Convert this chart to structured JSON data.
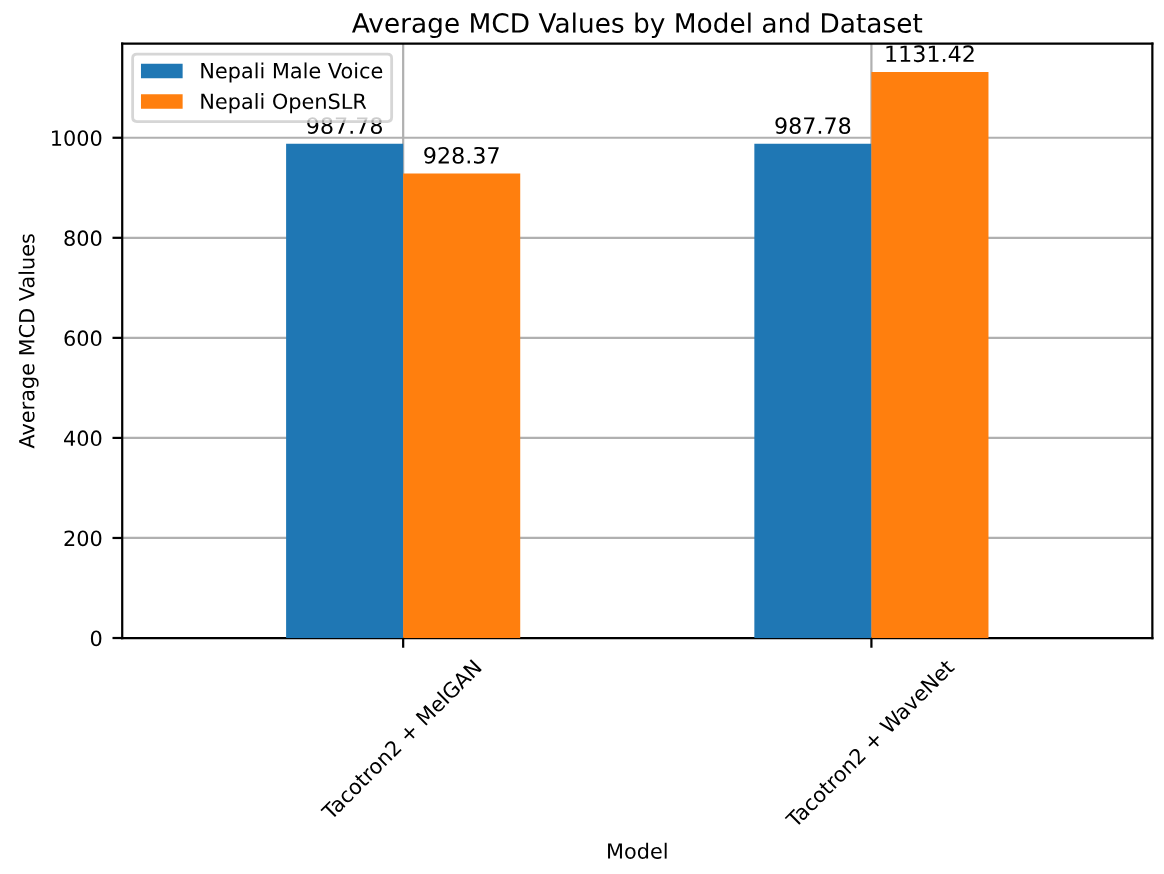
{
  "chart_data": {
    "type": "bar",
    "title": "Average MCD Values by Model and Dataset",
    "xlabel": "Model",
    "ylabel": "Average MCD Values",
    "categories": [
      "Tacotron2 + MelGAN",
      "Tacotron2 + WaveNet"
    ],
    "series": [
      {
        "name": "Nepali Male Voice",
        "color": "#1f77b4",
        "values": [
          987.78,
          987.78
        ]
      },
      {
        "name": "Nepali OpenSLR",
        "color": "#ff7f0e",
        "values": [
          928.37,
          1131.42
        ]
      }
    ],
    "ylim": [
      0,
      1188
    ],
    "yticks": [
      0,
      200,
      400,
      600,
      800,
      1000
    ],
    "grid": true,
    "legend": "top left",
    "data_labels": true
  }
}
